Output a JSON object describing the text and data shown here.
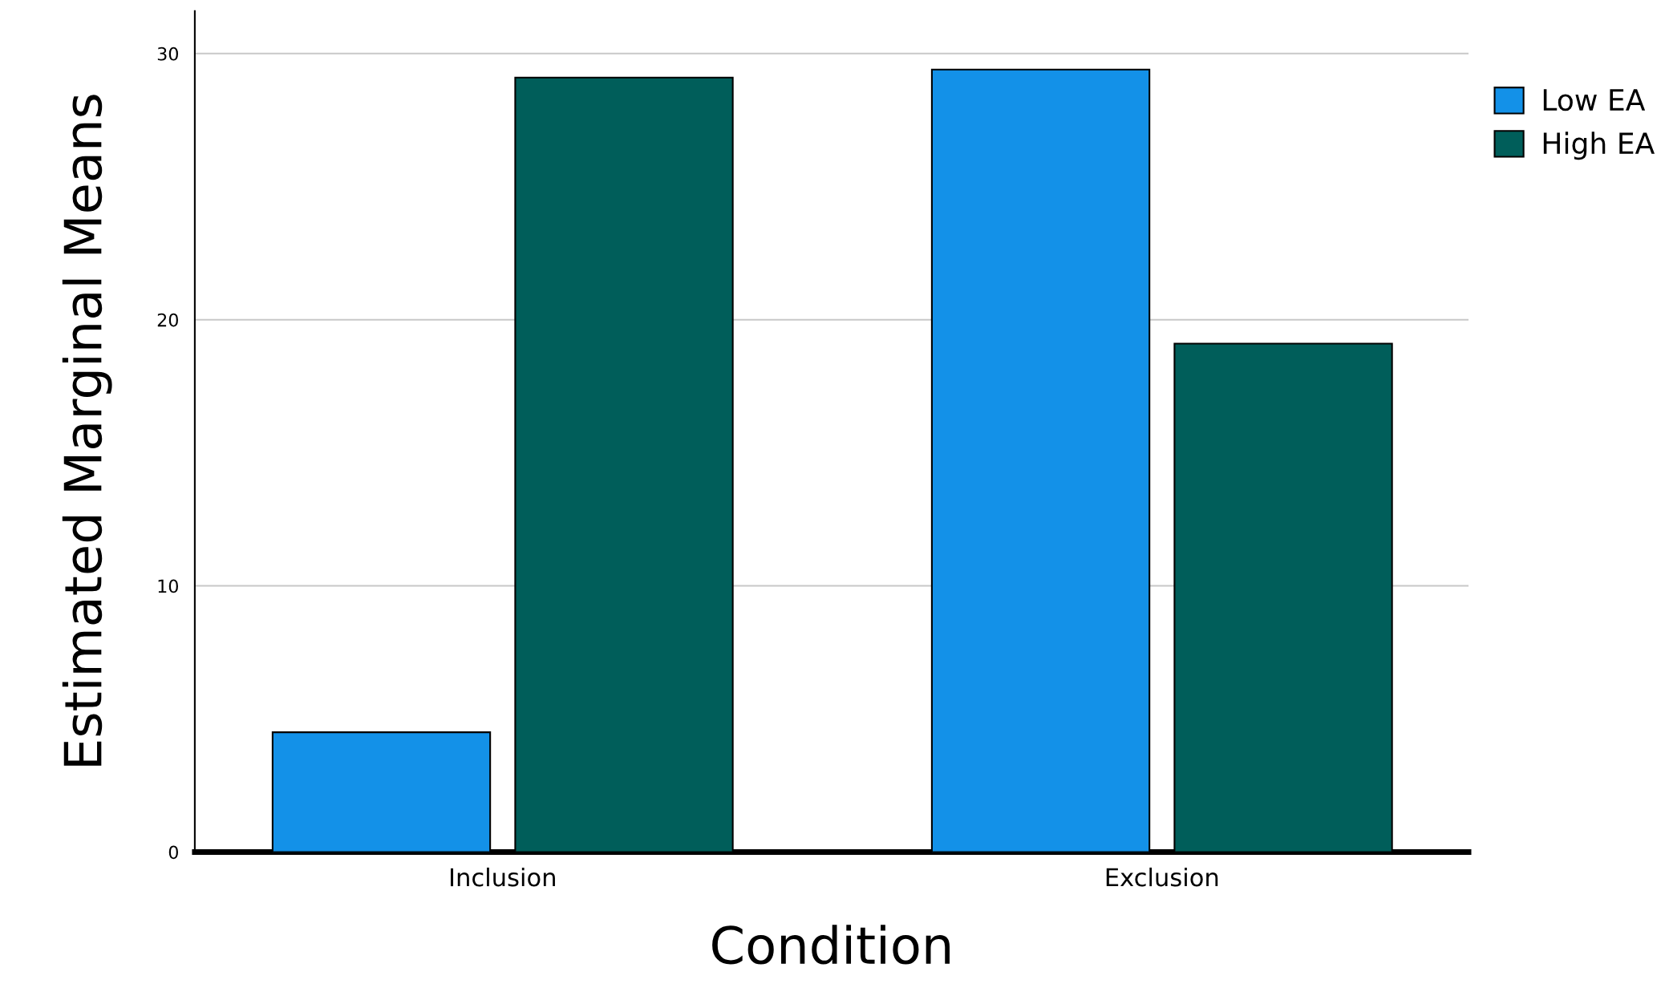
{
  "chart_data": {
    "type": "bar",
    "xlabel": "Condition",
    "ylabel": "Estimated Marginal Means",
    "categories": [
      "Inclusion",
      "Exclusion"
    ],
    "series": [
      {
        "name": "Low EA",
        "color": "#1391e8",
        "values": [
          4.5,
          29.4
        ]
      },
      {
        "name": "High EA",
        "color": "#005e5a",
        "values": [
          29.1,
          19.1
        ]
      }
    ],
    "ylim": [
      0,
      31.6
    ],
    "yticks": [
      0,
      10,
      20,
      30
    ],
    "grid": "y",
    "legend": "top right"
  }
}
